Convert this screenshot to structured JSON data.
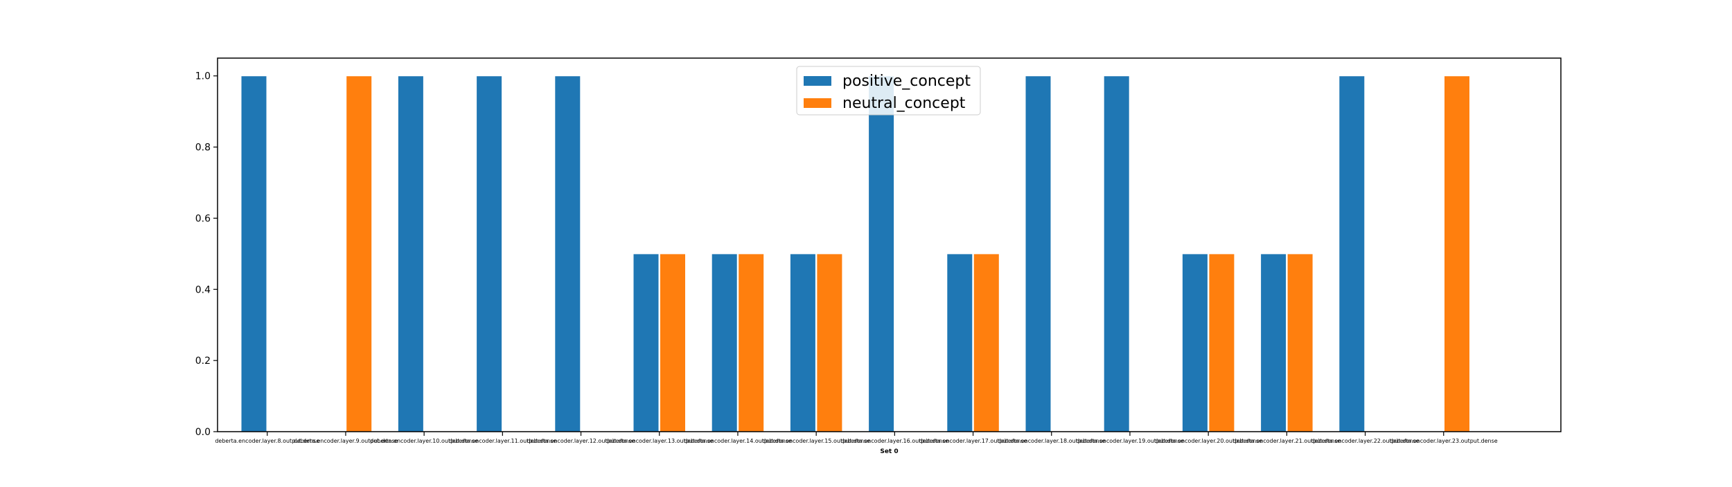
{
  "chart_data": {
    "type": "bar",
    "title": "",
    "xlabel": "Set 0",
    "ylabel": "",
    "ylim": [
      0,
      1.05
    ],
    "yticks": [
      0.0,
      0.2,
      0.4,
      0.6,
      0.8,
      1.0
    ],
    "ytick_labels": [
      "0.0",
      "0.2",
      "0.4",
      "0.6",
      "0.8",
      "1.0"
    ],
    "grid": false,
    "legend_position": "top-center",
    "categories": [
      "deberta.encoder.layer.8.output.dense",
      "deberta.encoder.layer.9.output.dense",
      "deberta.encoder.layer.10.output.dense",
      "deberta.encoder.layer.11.output.dense",
      "deberta.encoder.layer.12.output.dense",
      "deberta.encoder.layer.13.output.dense",
      "deberta.encoder.layer.14.output.dense",
      "deberta.encoder.layer.15.output.dense",
      "deberta.encoder.layer.16.output.dense",
      "deberta.encoder.layer.17.output.dense",
      "deberta.encoder.layer.18.output.dense",
      "deberta.encoder.layer.19.output.dense",
      "deberta.encoder.layer.20.output.dense",
      "deberta.encoder.layer.21.output.dense",
      "deberta.encoder.layer.22.output.dense",
      "deberta.encoder.layer.23.output.dense"
    ],
    "series": [
      {
        "name": "positive_concept",
        "color": "#1f77b4",
        "values": [
          1.0,
          0.0,
          1.0,
          1.0,
          1.0,
          0.5,
          0.5,
          0.5,
          1.0,
          0.5,
          1.0,
          1.0,
          0.5,
          0.5,
          1.0,
          0.0
        ]
      },
      {
        "name": "neutral_concept",
        "color": "#ff7f0e",
        "values": [
          0.0,
          1.0,
          0.0,
          0.0,
          0.0,
          0.5,
          0.5,
          0.5,
          0.0,
          0.5,
          0.0,
          0.0,
          0.5,
          0.5,
          0.0,
          1.0
        ]
      }
    ]
  }
}
